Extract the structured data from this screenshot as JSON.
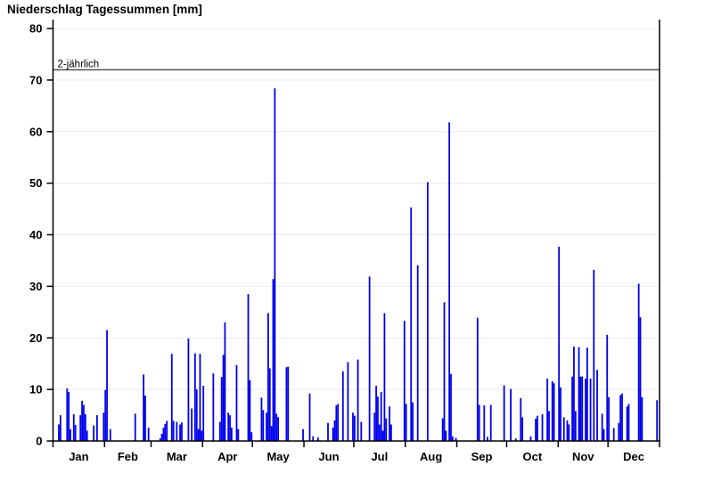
{
  "page": {
    "background": "#ffffff"
  },
  "header": {
    "title": "Niederschlag Tagessummen [mm]"
  },
  "chart_data": {
    "type": "bar",
    "title": "Niederschlag Tagessummen [mm]",
    "xlabel": "",
    "ylabel": "",
    "unit": "mm",
    "ylim": [
      0,
      80
    ],
    "yticks": [
      0,
      10,
      20,
      30,
      40,
      50,
      60,
      70,
      80
    ],
    "months": [
      "Jan",
      "Feb",
      "Mar",
      "Apr",
      "May",
      "Jun",
      "Jul",
      "Aug",
      "Sep",
      "Oct",
      "Nov",
      "Dec"
    ],
    "month_days": [
      31,
      28,
      31,
      30,
      31,
      30,
      31,
      31,
      30,
      31,
      30,
      31
    ],
    "grid": "horizontal-light",
    "legend_position": "none",
    "reference_line": {
      "label": "2-jährlich",
      "value": 72
    },
    "colors": {
      "bar": "#0000ee",
      "grid": "#ececec",
      "axis": "#000000"
    },
    "points_format": [
      "day_of_year",
      "mm"
    ],
    "points": [
      [
        4,
        3.2
      ],
      [
        5,
        5.0
      ],
      [
        9,
        10.2
      ],
      [
        10,
        9.5
      ],
      [
        11,
        2.3
      ],
      [
        13,
        5.2
      ],
      [
        14,
        3.1
      ],
      [
        17,
        5.0
      ],
      [
        18,
        7.8
      ],
      [
        19,
        7.0
      ],
      [
        20,
        5.2
      ],
      [
        21,
        2.0
      ],
      [
        25,
        3.0
      ],
      [
        27,
        5.0
      ],
      [
        31,
        5.5
      ],
      [
        32,
        9.9
      ],
      [
        33,
        21.5
      ],
      [
        35,
        2.3
      ],
      [
        50,
        5.3
      ],
      [
        55,
        12.9
      ],
      [
        56,
        8.8
      ],
      [
        58,
        2.6
      ],
      [
        65,
        0.5
      ],
      [
        66,
        1.4
      ],
      [
        67,
        2.6
      ],
      [
        68,
        3.3
      ],
      [
        69,
        3.9
      ],
      [
        72,
        16.9
      ],
      [
        73,
        3.9
      ],
      [
        75,
        3.7
      ],
      [
        77,
        3.2
      ],
      [
        78,
        3.6
      ],
      [
        82,
        19.9
      ],
      [
        84,
        6.3
      ],
      [
        86,
        17.0
      ],
      [
        87,
        10.0
      ],
      [
        88,
        2.3
      ],
      [
        89,
        16.9
      ],
      [
        90,
        2.0
      ],
      [
        91,
        10.7
      ],
      [
        97,
        13.1
      ],
      [
        101,
        3.7
      ],
      [
        102,
        12.4
      ],
      [
        103,
        16.7
      ],
      [
        104,
        23.0
      ],
      [
        106,
        5.5
      ],
      [
        107,
        5.0
      ],
      [
        108,
        2.6
      ],
      [
        111,
        14.7
      ],
      [
        112,
        2.3
      ],
      [
        118,
        28.5
      ],
      [
        119,
        11.8
      ],
      [
        120,
        1.7
      ],
      [
        126,
        8.4
      ],
      [
        127,
        6.0
      ],
      [
        129,
        5.5
      ],
      [
        130,
        24.8
      ],
      [
        131,
        14.1
      ],
      [
        132,
        2.9
      ],
      [
        133,
        31.4
      ],
      [
        134,
        68.4
      ],
      [
        135,
        5.3
      ],
      [
        136,
        4.6
      ],
      [
        141,
        14.3
      ],
      [
        142,
        14.4
      ],
      [
        151,
        2.3
      ],
      [
        155,
        9.2
      ],
      [
        157,
        0.9
      ],
      [
        160,
        0.7
      ],
      [
        166,
        3.5
      ],
      [
        169,
        2.6
      ],
      [
        170,
        4.0
      ],
      [
        171,
        6.9
      ],
      [
        172,
        7.2
      ],
      [
        175,
        13.5
      ],
      [
        178,
        15.3
      ],
      [
        181,
        5.5
      ],
      [
        182,
        4.9
      ],
      [
        184,
        15.8
      ],
      [
        186,
        3.7
      ],
      [
        191,
        31.9
      ],
      [
        194,
        5.5
      ],
      [
        195,
        10.7
      ],
      [
        196,
        8.6
      ],
      [
        197,
        3.2
      ],
      [
        198,
        9.5
      ],
      [
        199,
        2.0
      ],
      [
        200,
        24.8
      ],
      [
        201,
        4.4
      ],
      [
        203,
        6.7
      ],
      [
        204,
        3.2
      ],
      [
        212,
        23.3
      ],
      [
        213,
        7.2
      ],
      [
        216,
        45.3
      ],
      [
        217,
        7.5
      ],
      [
        220,
        34.1
      ],
      [
        226,
        50.2
      ],
      [
        235,
        4.4
      ],
      [
        236,
        26.9
      ],
      [
        237,
        2.0
      ],
      [
        239,
        61.8
      ],
      [
        240,
        13.0
      ],
      [
        241,
        0.9
      ],
      [
        243,
        0.6
      ],
      [
        256,
        23.9
      ],
      [
        257,
        7.0
      ],
      [
        260,
        6.9
      ],
      [
        262,
        0.8
      ],
      [
        264,
        7.0
      ],
      [
        272,
        10.8
      ],
      [
        276,
        10.1
      ],
      [
        279,
        0.5
      ],
      [
        282,
        8.3
      ],
      [
        283,
        4.6
      ],
      [
        288,
        0.9
      ],
      [
        291,
        4.3
      ],
      [
        292,
        4.9
      ],
      [
        295,
        5.2
      ],
      [
        298,
        12.1
      ],
      [
        299,
        5.8
      ],
      [
        301,
        11.6
      ],
      [
        302,
        11.2
      ],
      [
        305,
        37.7
      ],
      [
        306,
        10.4
      ],
      [
        308,
        4.6
      ],
      [
        310,
        4.0
      ],
      [
        311,
        3.2
      ],
      [
        313,
        12.5
      ],
      [
        314,
        18.3
      ],
      [
        315,
        5.8
      ],
      [
        317,
        18.2
      ],
      [
        318,
        12.5
      ],
      [
        319,
        12.5
      ],
      [
        321,
        12.1
      ],
      [
        322,
        18.1
      ],
      [
        324,
        12.1
      ],
      [
        326,
        33.2
      ],
      [
        328,
        13.8
      ],
      [
        331,
        5.3
      ],
      [
        332,
        2.3
      ],
      [
        334,
        20.6
      ],
      [
        335,
        8.5
      ],
      [
        338,
        2.5
      ],
      [
        341,
        3.5
      ],
      [
        342,
        8.9
      ],
      [
        343,
        9.2
      ],
      [
        346,
        6.7
      ],
      [
        347,
        7.2
      ],
      [
        353,
        30.5
      ],
      [
        354,
        24.0
      ],
      [
        355,
        8.5
      ],
      [
        364,
        7.9
      ]
    ]
  }
}
